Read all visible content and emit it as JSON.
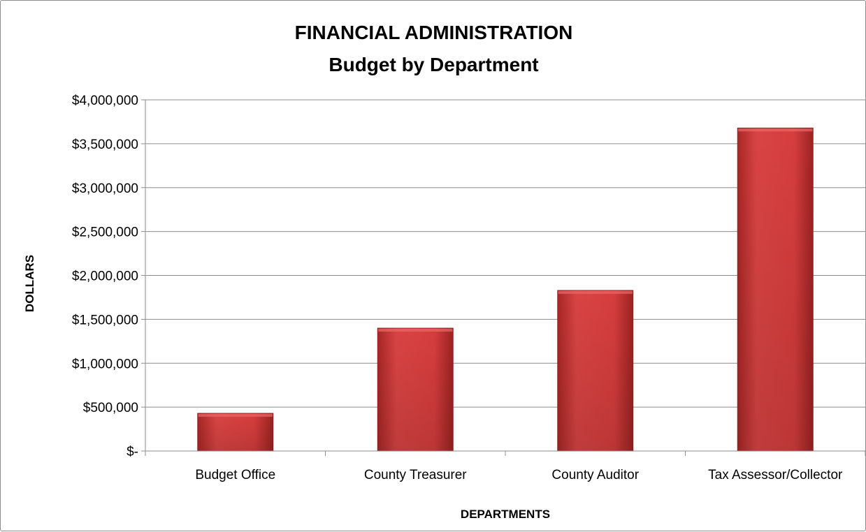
{
  "chart_data": {
    "type": "bar",
    "title": "FINANCIAL ADMINISTRATION",
    "subtitle": "Budget by Department",
    "xlabel": "DEPARTMENTS",
    "ylabel": "DOLLARS",
    "categories": [
      "Budget Office",
      "County Treasurer",
      "County Auditor",
      "Tax Assessor/Collector"
    ],
    "values": [
      430000,
      1400000,
      1830000,
      3680000
    ],
    "ylim": [
      0,
      4000000
    ],
    "yticks": [
      0,
      500000,
      1000000,
      1500000,
      2000000,
      2500000,
      3000000,
      3500000,
      4000000
    ],
    "ytick_labels": [
      "$-",
      "$500,000",
      "$1,000,000",
      "$1,500,000",
      "$2,000,000",
      "$2,500,000",
      "$3,000,000",
      "$3,500,000",
      "$4,000,000"
    ],
    "grid": true,
    "legend": "none",
    "bar_color": "#c0392b",
    "gridline_color": "#8c8c8c"
  }
}
